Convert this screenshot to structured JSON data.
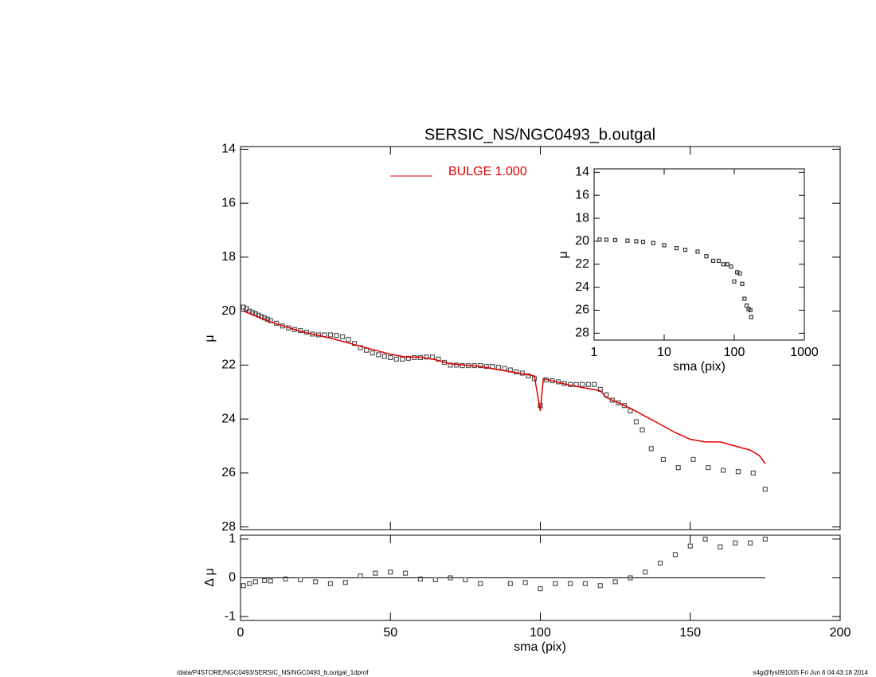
{
  "chart_data": [
    {
      "type": "scatter",
      "title": "SERSIC_NS/NGC0493_b.outgal",
      "ylabel": "μ",
      "xlim": [
        0,
        200
      ],
      "xticks": [
        0,
        50,
        100,
        150,
        200
      ],
      "xticklabels": false,
      "ylim": [
        13.9,
        28.1
      ],
      "yticks": [
        14,
        16,
        18,
        20,
        22,
        24,
        26,
        28
      ],
      "yinvert": true,
      "legend": "upper center",
      "series": [
        {
          "marker": "square",
          "color": "#555555",
          "x": [
            1,
            2,
            3,
            4,
            5,
            6,
            7,
            8,
            9,
            10,
            12,
            14,
            16,
            18,
            20,
            22,
            24,
            26,
            28,
            30,
            32,
            34,
            36,
            38,
            40,
            42,
            44,
            46,
            48,
            50,
            52,
            54,
            56,
            58,
            60,
            62,
            64,
            66,
            68,
            70,
            72,
            74,
            76,
            78,
            80,
            82,
            84,
            86,
            88,
            90,
            92,
            94,
            96,
            98,
            100,
            102,
            104,
            106,
            108,
            110,
            112,
            114,
            116,
            118,
            120,
            122,
            124,
            126,
            128,
            130,
            132,
            134,
            137,
            141,
            146,
            151,
            156,
            161,
            166,
            171,
            175
          ],
          "values": [
            19.85,
            19.9,
            20.0,
            20.05,
            20.1,
            20.15,
            20.2,
            20.25,
            20.3,
            20.35,
            20.45,
            20.55,
            20.62,
            20.68,
            20.72,
            20.78,
            20.85,
            20.88,
            20.88,
            20.88,
            20.9,
            20.95,
            21.05,
            21.2,
            21.35,
            21.45,
            21.55,
            21.62,
            21.68,
            21.72,
            21.78,
            21.78,
            21.75,
            21.72,
            21.72,
            21.7,
            21.7,
            21.78,
            21.9,
            22.0,
            22.0,
            22.02,
            22.02,
            22.02,
            22.02,
            22.05,
            22.05,
            22.08,
            22.12,
            22.18,
            22.25,
            22.3,
            22.4,
            22.5,
            23.5,
            22.55,
            22.58,
            22.62,
            22.68,
            22.72,
            22.72,
            22.72,
            22.72,
            22.72,
            22.9,
            23.1,
            23.3,
            23.4,
            23.5,
            23.7,
            24.1,
            24.4,
            25.1,
            25.5,
            25.8,
            25.5,
            25.8,
            25.9,
            25.95,
            26.0,
            26.6
          ]
        },
        {
          "name": "BULGE  1.000",
          "color": "#e00000",
          "x": [
            1,
            10,
            20,
            30,
            40,
            50,
            55,
            60,
            65,
            70,
            80,
            90,
            98,
            100,
            101,
            110,
            120,
            122,
            130,
            135,
            140,
            145,
            150,
            155,
            160,
            165,
            170,
            173,
            175
          ],
          "values": [
            20.0,
            20.4,
            20.75,
            21.0,
            21.3,
            21.6,
            21.7,
            21.7,
            21.8,
            21.95,
            22.05,
            22.25,
            22.4,
            23.7,
            22.5,
            22.75,
            22.95,
            23.2,
            23.6,
            23.9,
            24.2,
            24.5,
            24.75,
            24.85,
            24.85,
            25.0,
            25.15,
            25.35,
            25.65
          ]
        }
      ]
    },
    {
      "type": "scatter",
      "xlabel": "sma (pix)",
      "ylabel": "Δ μ",
      "xlim": [
        0,
        200
      ],
      "xticks": [
        0,
        50,
        100,
        150,
        200
      ],
      "ylim": [
        -1.1,
        1.1
      ],
      "yticks": [
        -1,
        0,
        1
      ],
      "hline": 0,
      "series": [
        {
          "marker": "square",
          "color": "#555555",
          "x": [
            1,
            3,
            5,
            8,
            10,
            15,
            20,
            25,
            30,
            35,
            40,
            45,
            50,
            55,
            60,
            65,
            70,
            75,
            80,
            90,
            95,
            100,
            105,
            110,
            115,
            120,
            125,
            130,
            135,
            140,
            145,
            150,
            155,
            160,
            165,
            170,
            175
          ],
          "values": [
            -0.2,
            -0.15,
            -0.1,
            -0.07,
            -0.08,
            -0.03,
            -0.05,
            -0.1,
            -0.15,
            -0.12,
            0.05,
            0.12,
            0.15,
            0.12,
            -0.03,
            -0.05,
            0.0,
            -0.05,
            -0.15,
            -0.15,
            -0.12,
            -0.28,
            -0.15,
            -0.15,
            -0.15,
            -0.2,
            -0.1,
            0.0,
            0.15,
            0.38,
            0.6,
            0.82,
            1.0,
            0.8,
            0.9,
            0.9,
            1.0
          ]
        }
      ]
    },
    {
      "type": "scatter",
      "xlabel": "sma (pix)",
      "ylabel": "μ",
      "xlog": true,
      "xlim": [
        1,
        1000
      ],
      "xticks": [
        1,
        10,
        100,
        1000
      ],
      "ylim": [
        13.7,
        28.6
      ],
      "yticks": [
        14,
        16,
        18,
        20,
        22,
        24,
        26,
        28
      ],
      "yinvert": true,
      "series": [
        {
          "marker": "square",
          "color": "#333333",
          "x": [
            1.2,
            1.5,
            2,
            3,
            4,
            5,
            7,
            10,
            15,
            20,
            30,
            40,
            50,
            60,
            70,
            80,
            90,
            100,
            110,
            120,
            130,
            140,
            150,
            160,
            170,
            175
          ],
          "values": [
            19.85,
            19.87,
            19.9,
            19.95,
            20.0,
            20.05,
            20.15,
            20.35,
            20.6,
            20.75,
            20.9,
            21.3,
            21.7,
            21.7,
            22.0,
            22.0,
            22.2,
            23.5,
            22.7,
            22.8,
            23.7,
            25.0,
            25.6,
            25.9,
            26.0,
            26.6
          ]
        }
      ]
    }
  ],
  "footer": {
    "path": "/data/P4STORE/NGC0493/SERSIC_NS/NGC0493_b.outgal_1dprof",
    "stamp": "s4g@fys091005  Fri Jun  6 04:43:18 2014"
  }
}
